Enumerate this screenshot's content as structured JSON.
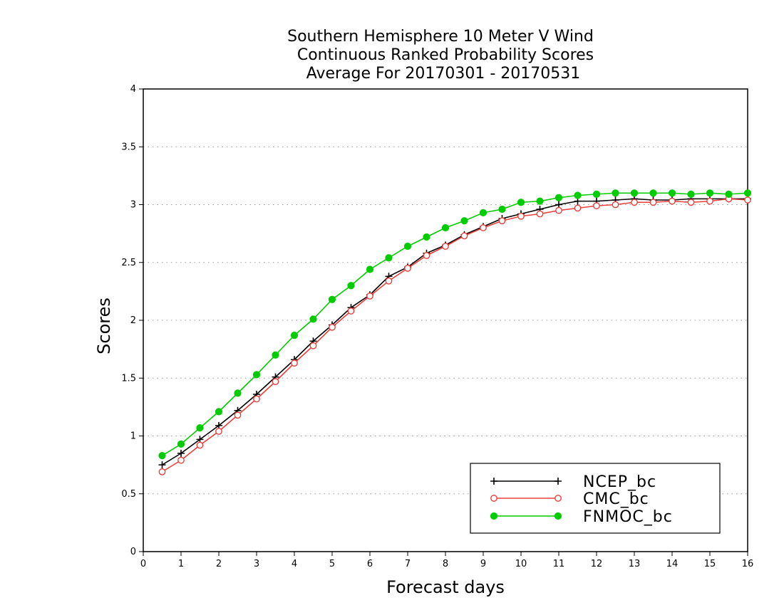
{
  "chart_data": {
    "type": "line",
    "title": [
      "Southern Hemisphere 10 Meter V Wind",
      "Continuous Ranked Probability Scores",
      "Average For 20170301 - 20170531"
    ],
    "xlabel": "Forecast days",
    "ylabel": "Scores",
    "xlim": [
      0,
      16
    ],
    "ylim": [
      0,
      4
    ],
    "xticks": [
      "0",
      "1",
      "2",
      "3",
      "4",
      "5",
      "6",
      "7",
      "8",
      "9",
      "10",
      "11",
      "12",
      "13",
      "14",
      "15",
      "16"
    ],
    "yticks": [
      "0",
      "0.5",
      "1",
      "1.5",
      "2",
      "2.5",
      "3",
      "3.5",
      "4"
    ],
    "grid": true,
    "legend_position": "bottom-right",
    "x": [
      0.5,
      1,
      1.5,
      2,
      2.5,
      3,
      3.5,
      4,
      4.5,
      5,
      5.5,
      6,
      6.5,
      7,
      7.5,
      8,
      8.5,
      9,
      9.5,
      10,
      10.5,
      11,
      11.5,
      12,
      12.5,
      13,
      13.5,
      14,
      14.5,
      15,
      15.5,
      16
    ],
    "series": [
      {
        "name": "NCEP_bc",
        "color": "#000000",
        "marker": "plus",
        "values": [
          0.75,
          0.85,
          0.97,
          1.09,
          1.22,
          1.36,
          1.51,
          1.66,
          1.82,
          1.96,
          2.11,
          2.22,
          2.38,
          2.46,
          2.58,
          2.65,
          2.74,
          2.81,
          2.88,
          2.92,
          2.96,
          3.0,
          3.03,
          3.03,
          3.04,
          3.05,
          3.04,
          3.04,
          3.05,
          3.05,
          3.05,
          3.05
        ]
      },
      {
        "name": "CMC_bc",
        "color": "#e8403c",
        "marker": "open-circle",
        "values": [
          0.69,
          0.79,
          0.92,
          1.04,
          1.18,
          1.32,
          1.47,
          1.63,
          1.78,
          1.94,
          2.08,
          2.21,
          2.34,
          2.45,
          2.56,
          2.64,
          2.73,
          2.8,
          2.86,
          2.9,
          2.92,
          2.95,
          2.97,
          2.99,
          3.0,
          3.02,
          3.02,
          3.03,
          3.02,
          3.03,
          3.05,
          3.04
        ]
      },
      {
        "name": "FNMOC_bc",
        "color": "#00cc00",
        "marker": "filled-circle",
        "values": [
          0.83,
          0.93,
          1.07,
          1.21,
          1.37,
          1.53,
          1.7,
          1.87,
          2.01,
          2.18,
          2.3,
          2.44,
          2.54,
          2.64,
          2.72,
          2.8,
          2.86,
          2.93,
          2.96,
          3.02,
          3.03,
          3.06,
          3.08,
          3.09,
          3.1,
          3.1,
          3.1,
          3.1,
          3.09,
          3.1,
          3.09,
          3.1
        ]
      }
    ]
  }
}
